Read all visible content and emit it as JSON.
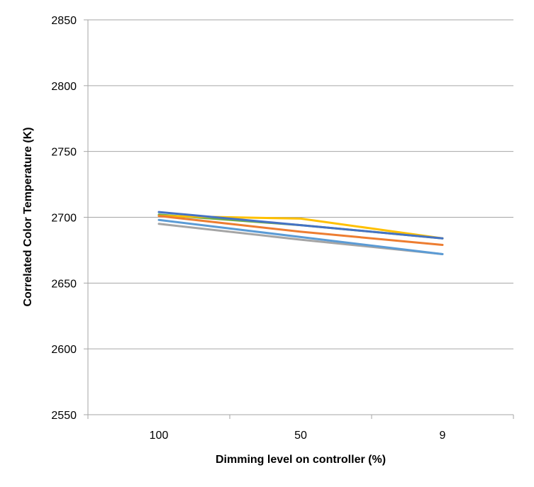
{
  "chart_data": {
    "type": "line",
    "title": "",
    "xlabel": "Dimming level on controller (%)",
    "ylabel": "Correlated Color Temperature (K)",
    "categories": [
      "100",
      "50",
      "9"
    ],
    "ylim": [
      2550,
      2850
    ],
    "yticks": [
      2550,
      2600,
      2650,
      2700,
      2750,
      2800,
      2850
    ],
    "grid": true,
    "legend": "none",
    "series": [
      {
        "color": "#4472C4",
        "values": [
          2704,
          2694,
          2684
        ]
      },
      {
        "color": "#ED7D31",
        "values": [
          2701,
          2689,
          2679
        ]
      },
      {
        "color": "#FFC000",
        "values": [
          2701,
          2699,
          2684
        ]
      },
      {
        "color": "#70AD47",
        "values": [
          2702,
          2694,
          2684
        ]
      },
      {
        "color": "#5B9BD5",
        "values": [
          2698,
          2685,
          2672
        ]
      },
      {
        "color": "#A5A5A5",
        "values": [
          2695,
          2683,
          2672
        ]
      }
    ],
    "colors": {
      "gridline": "#A6A6A6",
      "axis": "#A6A6A6",
      "text": "#000000"
    }
  }
}
